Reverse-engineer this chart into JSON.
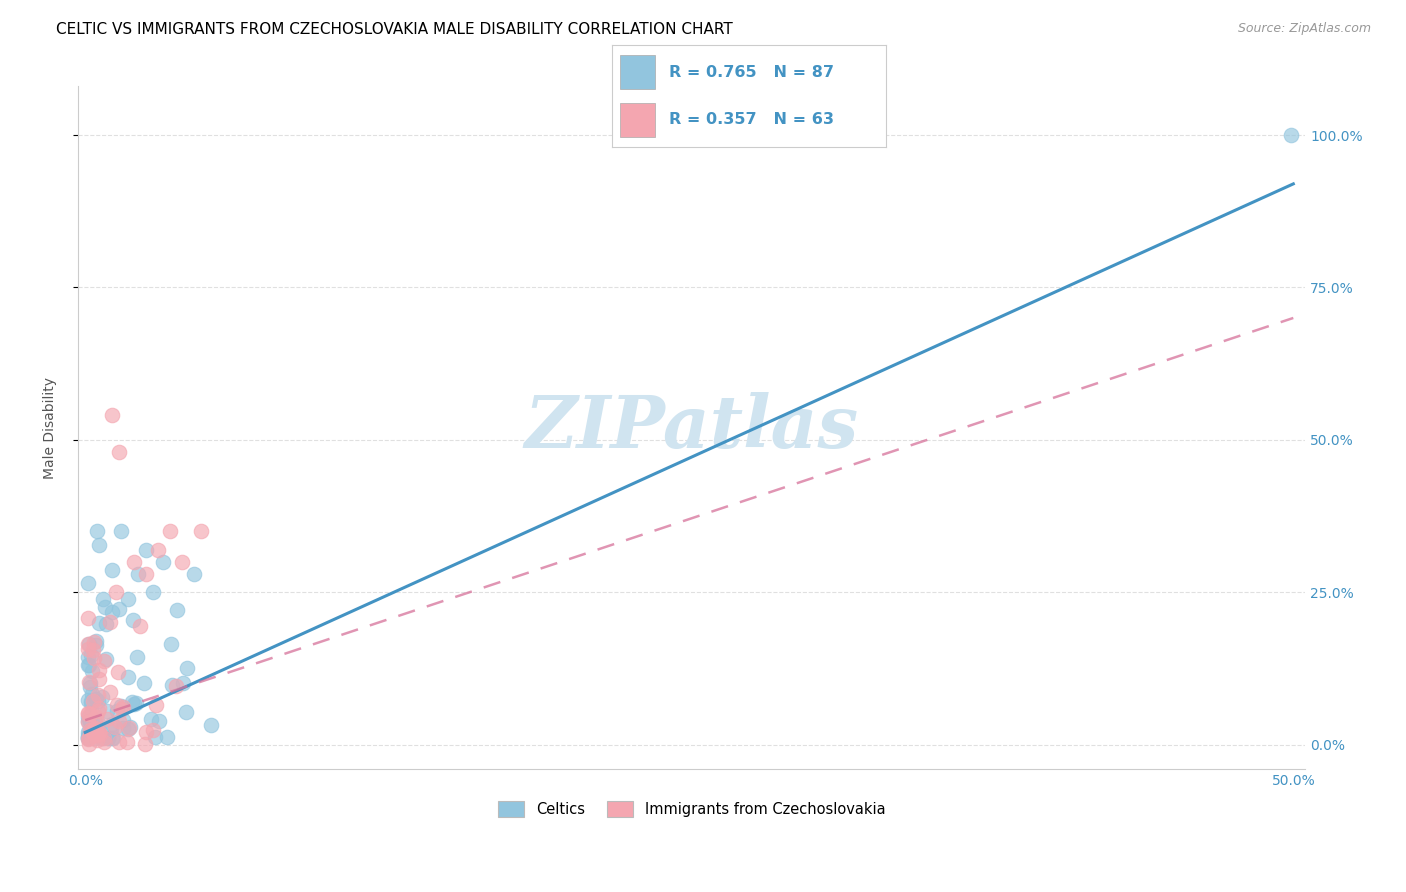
{
  "title": "CELTIC VS IMMIGRANTS FROM CZECHOSLOVAKIA MALE DISABILITY CORRELATION CHART",
  "source": "Source: ZipAtlas.com",
  "ylabel": "Male Disability",
  "xlim": [
    -0.003,
    0.505
  ],
  "ylim": [
    -0.04,
    1.08
  ],
  "xticks": [
    0.0,
    0.1,
    0.2,
    0.3,
    0.4,
    0.5
  ],
  "xtick_labels": [
    "0.0%",
    "",
    "",
    "",
    "",
    "50.0%"
  ],
  "ytick_positions": [
    0.0,
    0.25,
    0.5,
    0.75,
    1.0
  ],
  "ytick_labels_right": [
    "0.0%",
    "25.0%",
    "50.0%",
    "75.0%",
    "100.0%"
  ],
  "legend_blue_R": "0.765",
  "legend_blue_N": "87",
  "legend_pink_R": "0.357",
  "legend_pink_N": "63",
  "legend_labels": [
    "Celtics",
    "Immigrants from Czechoslovakia"
  ],
  "blue_color": "#92c5de",
  "pink_color": "#f4a6b0",
  "blue_line_color": "#4393c3",
  "pink_line_color": "#d6729a",
  "tick_color": "#4393c3",
  "grid_color": "#e0e0e0",
  "watermark_text": "ZIPatlas",
  "watermark_color": "#d0e4f0"
}
